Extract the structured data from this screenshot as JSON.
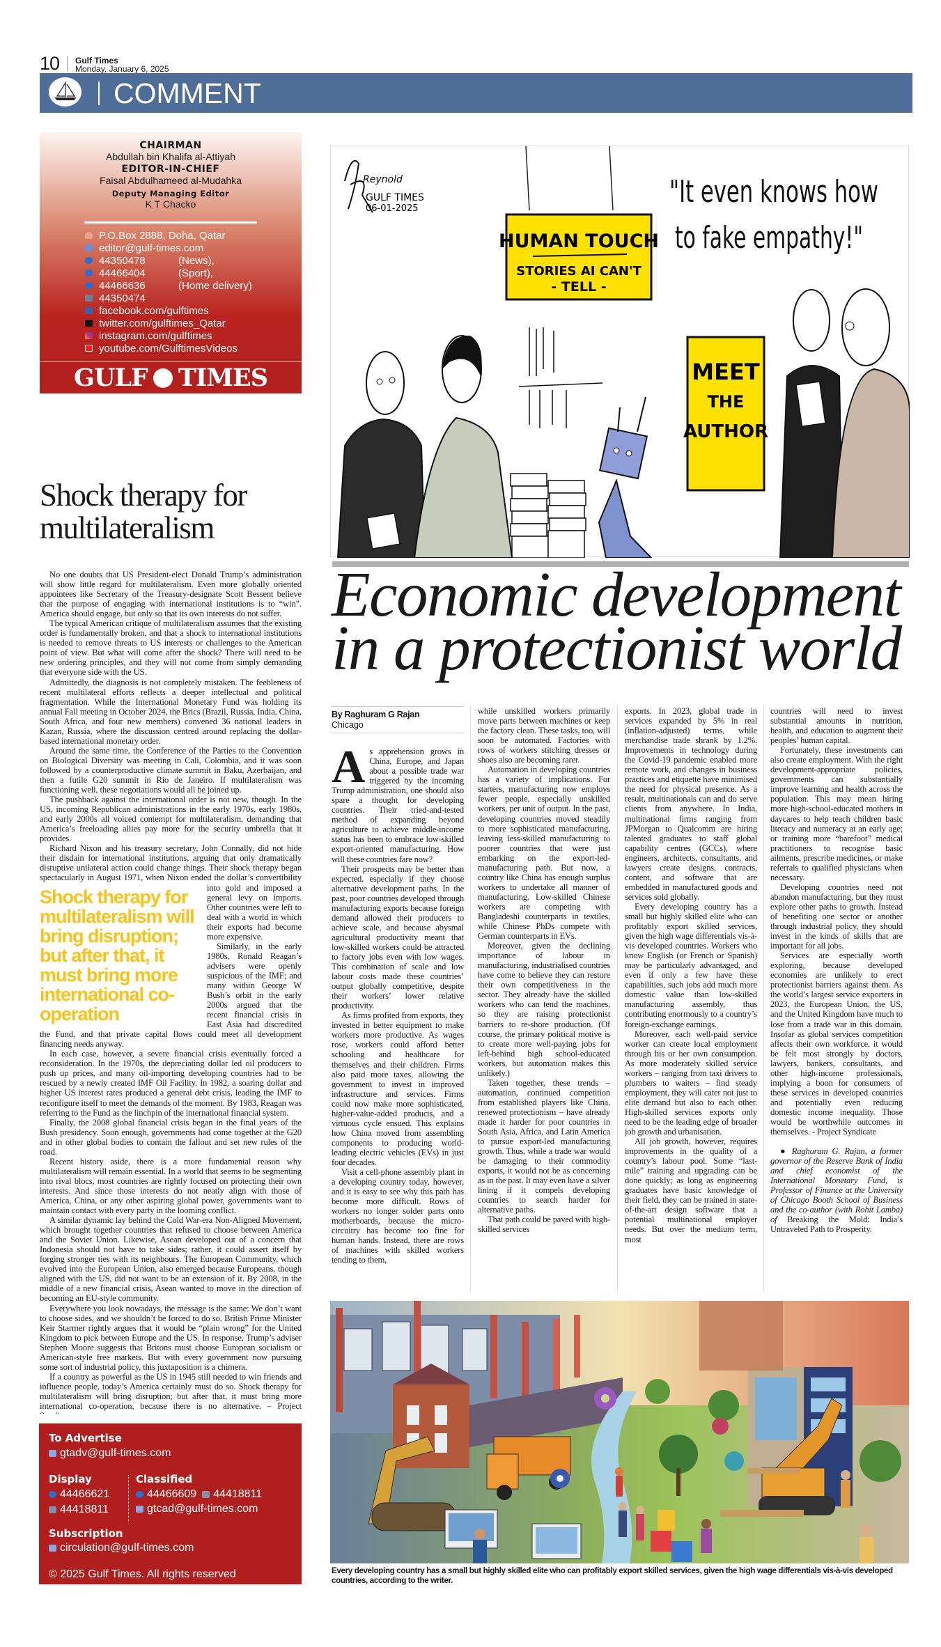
{
  "header": {
    "page_number": "10",
    "paper": "Gulf Times",
    "date": "Monday, January 6, 2025"
  },
  "banner": {
    "section": "COMMENT",
    "logo_icon": "dhow-ship-icon",
    "color": "#4e6d98"
  },
  "masthead": {
    "chairman_label": "CHAIRMAN",
    "chairman_name": "Abdullah bin Khalifa al-Attiyah",
    "editor_label": "EDITOR-IN-CHIEF",
    "editor_name": "Faisal Abdulhameed al-Mudahka",
    "deputy_label": "Deputy Managing Editor",
    "deputy_name": "K T Chacko",
    "contacts": [
      {
        "icon": "location-pin-icon",
        "text": "P.O.Box 2888, Doha, Qatar",
        "note": ""
      },
      {
        "icon": "email-icon",
        "text": "editor@gulf-times.com",
        "note": ""
      },
      {
        "icon": "phone-icon",
        "text": "44350478",
        "note": "(News),"
      },
      {
        "icon": "phone-icon",
        "text": "44466404",
        "note": "(Sport),"
      },
      {
        "icon": "phone-icon",
        "text": "44466636",
        "note": "(Home delivery)"
      },
      {
        "icon": "fax-icon",
        "text": "44350474",
        "note": ""
      },
      {
        "icon": "facebook-icon",
        "text": "facebook.com/gulftimes",
        "note": ""
      },
      {
        "icon": "x-twitter-icon",
        "text": "twitter.com/gulftimes_Qatar",
        "note": ""
      },
      {
        "icon": "instagram-icon",
        "text": "instagram.com/gulftimes",
        "note": ""
      },
      {
        "icon": "youtube-icon",
        "text": "youtube.com/GulftimesVideos",
        "note": ""
      }
    ],
    "logo_text_left": "GULF",
    "logo_text_right": "TIMES",
    "brand_color": "#b3201e"
  },
  "left_article": {
    "headline": "Shock therapy for multilateralism",
    "pullquote": "Shock therapy for multilateralism will bring disruption; but after that, it must bring more international co-operation",
    "pullquote_color": "#f9c31a",
    "paragraphs_before": [
      "No one doubts that US President-elect Donald Trump’s administration will show little regard for multilateralism. Even more globally oriented appointees like Secretary of the Treasury-designate Scott Bessent believe that the purpose of engaging with international institutions is to “win”. America should engage, but only so that its own interests do not suffer.",
      "The typical American critique of multilateralism assumes that the existing order is fundamentally broken, and that a shock to international institutions is needed to remove threats to US interests or challenges to the American point of view. But what will come after the shock? There will need to be new ordering principles, and they will not come from simply demanding that everyone side with the US.",
      "Admittedly, the diagnosis is not completely mistaken. The feebleness of recent multilateral efforts reflects a deeper intellectual and political fragmentation. While the International Monetary Fund was holding its annual Fall meeting in October 2024, the Brics (Brazil, Russia, India, China, South Africa, and four new members) convened 36 national leaders in Kazan, Russia, where the discussion centred around replacing the dollar-based international monetary order.",
      "Around the same time, the Conference of the Parties to the Convention on Biological Diversity was meeting in Cali, Colombia, and it was soon followed by a counterproductive climate summit in Baku, Azerbaijan, and then a futile G20 summit in Rio de Janeiro. If multilateralism was functioning well, these negotiations would all be joined up.",
      "The pushback against the international order is not new, though. In the US, incoming Republican administrations in the early 1970s, early 1980s, and early 2000s all voiced contempt for multilateralism, demanding that America’s freeloading allies pay more for the security umbrella that it provides."
    ],
    "split_paragraph_a": "Richard Nixon and his treasury secretary, John Connally, did not hide their disdain for international institutions, arguing that only dramatically disruptive unilateral action could change things. Their shock therapy began spectacularly in August 1971, when Nixon ended the dollar’s convertibility",
    "split_paragraph_b": "into gold and imposed a general levy on imports. Other countries were left to deal with a world in which their exports had become more expensive.",
    "paragraphs_after": [
      "Similarly, in the early 1980s, Ronald Reagan’s advisers were openly suspicious of the IMF; and many within George W Bush’s orbit in the early 2000s argued that the recent financial crisis in East Asia had discredited the Fund, and that private capital flows could meet all development financing needs anyway.",
      "In each case, however, a severe financial crisis eventually forced a reconsideration. In the 1970s, the depreciating dollar led oil producers to push up prices, and many oil-importing developing countries had to be rescued by a newly created IMF Oil Facility. In 1982, a soaring dollar and higher US interest rates produced a general debt crisis, leading the IMF to reconfigure itself to meet the demands of the moment. By 1983, Reagan was referring to the Fund as the linchpin of the international financial system.",
      "Finally, the 2008 global financial crisis began in the final years of the Bush presidency. Soon enough, governments had come together at the G20 and in other global bodies to contain the fallout and set new rules of the road.",
      "Recent history aside, there is a more fundamental reason why multilateralism will remain essential. In a world that seems to be segmenting into rival blocs, most countries are rightly focused on protecting their own interests. And since those interests do not neatly align with those of America, China, or any other aspiring global power, governments want to maintain contact with every party in the looming conflict.",
      "A similar dynamic lay behind the Cold War-era Non-Aligned Movement, which brought together countries that refused to choose between America and the Soviet Union. Likewise, Asean developed out of a concern that Indonesia should not have to take sides; rather, it could assert itself by forging stronger ties with its neighbours. The European Community, which evolved into the European Union, also emerged because Europeans, though aligned with the US, did not want to be an extension of it. By 2008, in the middle of a new financial crisis, Asean wanted to move in the direction of becoming an EU-style community.",
      "Everywhere you look nowadays, the message is the same: We don’t want to choose sides, and we shouldn’t be forced to do so. British Prime Minister Keir Starmer rightly argues that it would be “plain wrong” for the United Kingdom to pick between Europe and the US. In response, Trump’s adviser Stephen Moore suggests that Britons must choose European socialism or American-style free markets. But with every government now pursuing some sort of industrial policy, this juxtaposition is a chimera.",
      "If a country as powerful as the US in 1945 still needed to win friends and influence people, today’s America certainly must do so. Shock therapy for multilateralism will bring disruption; but after that, it must bring more international co-operation, because there is no alternative. – Project Syndicate"
    ]
  },
  "footer_box": {
    "advertise_label": "To Advertise",
    "advertise_email": "gtadv@gulf-times.com",
    "display_label": "Display",
    "display_phone": "44466621",
    "display_fax": "44418811",
    "classified_label": "Classified",
    "classified_phone": "44466609",
    "classified_fax": "44418811",
    "classified_email": "gtcad@gulf-times.com",
    "subscription_label": "Subscription",
    "subscription_email": "circulation@gulf-times.com",
    "copyright": "© 2025 Gulf Times. All rights reserved"
  },
  "cartoon": {
    "artist_signature": "Reynold",
    "signature_paper": "GULF TIMES",
    "signature_date": "06-01-2025",
    "sign1_line1": "HUMAN TOUCH",
    "sign1_line2": "STORIES AI CAN'T",
    "sign1_line3": "- TELL -",
    "sign2_line1": "MEET",
    "sign2_line2": "THE",
    "sign2_line3": "AUTHOR",
    "quote_line1": "\"It even knows how",
    "quote_line2": "to fake empathy!\"",
    "sign_color": "#ffe100"
  },
  "main_article": {
    "headline_line1": "Economic development",
    "headline_line2": "in a protectionist world",
    "byline": "By Raghuram G Rajan",
    "dateline": "Chicago",
    "drop_cap": "A",
    "col1": [
      "s apprehension grows in China, Europe, and Japan about a possible trade war triggered by the incoming Trump administration, one should also spare a thought for developing countries. Their tried-and-tested method of expanding beyond agriculture to achieve middle-income status has been to embrace low-skilled export-oriented manufacturing. How will these countries fare now?",
      "Their prospects may be better than expected, especially if they choose alternative development paths. In the past, poor countries developed through manufacturing exports because foreign demand allowed their producers to achieve scale, and because abysmal agricultural productivity meant that low-skilled workers could be attracted to factory jobs even with low wages. This combination of scale and low labour costs made these countries’ output globally competitive, despite their workers’ lower relative productivity.",
      "As firms profited from exports, they invested in better equipment to make workers more productive. As wages rose, workers could afford better schooling and healthcare for themselves and their children. Firms also paid more taxes, allowing the government to invest in improved infrastructure and services. Firms could now make more sophisticated, higher-value-added products, and a virtuous cycle ensued. This explains how China moved from assembling components to producing world-leading electric vehicles (EVs) in just four decades.",
      "Visit a cell-phone assembly plant in a developing country today, however, and it is easy to see why this path has become more difficult. Rows of workers no longer solder parts onto motherboards, because the micro-circuitry has become too fine for human hands. Instead, there are rows of machines with skilled workers tending to them,"
    ],
    "col2": [
      "while unskilled workers primarily move parts between machines or keep the factory clean. These tasks, too, will soon be automated. Factories with rows of workers stitching dresses or shoes also are becoming rarer.",
      "Automation in developing countries has a variety of implications. For starters, manufacturing now employs fewer people, especially unskilled workers, per unit of output. In the past, developing countries moved steadily to more sophisticated manufacturing, leaving less-skilled manufacturing to poorer countries that were just embarking on the export-led-manufacturing path. But now, a country like China has enough surplus workers to undertake all manner of manufacturing. Low-skilled Chinese workers are competing with Bangladeshi counterparts in textiles, while Chinese PhDs compete with German counterparts in EVs.",
      "Moreover, given the declining importance of labour in manufacturing, industrialised countries have come to believe they can restore their own competitiveness in the sector. They already have the skilled workers who can tend the machines, so they are raising protectionist barriers to re-shore production. (Of course, the primary political motive is to create more well-paying jobs for left-behind high school-educated workers, but automation makes this unlikely.)",
      "Taken together, these trends – automation, continued competition from established players like China, renewed protectionism – have already made it harder for poor countries in South Asia, Africa, and Latin America to pursue export-led manufacturing growth. Thus, while a trade war would be damaging to their commodity exports, it would not be as concerning as in the past. It may even have a silver lining if it compels developing countries to search harder for alternative paths.",
      "That path could be paved with high-skilled services"
    ],
    "col3": [
      "exports. In 2023, global trade in services expanded by 5% in real (inflation-adjusted) terms, while merchandise trade shrank by 1.2%. Improvements in technology during the Covid-19 pandemic enabled more remote work, and changes in business practices and etiquette have minimised the need for physical presence. As a result, multinationals can and do serve clients from anywhere. In India, multinational firms ranging from JPMorgan to Qualcomm are hiring talented graduates to staff global capability centres (GCCs), where engineers, architects, consultants, and lawyers create designs, contracts, content, and software that are embedded in manufactured goods and services sold globally.",
      "Every developing country has a small but highly skilled elite who can profitably export skilled services, given the high wage differentials vis-à-vis developed countries. Workers who know English (or French or Spanish) may be particularly advantaged, and even if only a few have these capabilities, such jobs add much more domestic value than low-skilled manufacturing assembly, thus contributing enormously to a country’s foreign-exchange earnings.",
      "Moreover, each well-paid service worker can create local employment through his or her own consumption. As more moderately skilled service workers – ranging from taxi drivers to plumbers to waiters – find steady employment, they will cater not just to elite demand but also to each other. High-skilled services exports only need to be the leading edge of broader job growth and urbanisation.",
      "All job growth, however, requires improvements in the quality of a country’s labour pool. Some “last-mile” training and upgrading can be done quickly; as long as engineering graduates have basic knowledge of their field, they can be trained in state-of-the-art design software that a potential multinational employer needs. But over the medium term, most"
    ],
    "col4": [
      "countries will need to invest substantial amounts in nutrition, health, and education to augment their peoples’ human capital.",
      "Fortunately, these investments can also create employment. With the right development-appropriate policies, governments can substantially improve learning and health across the population. This may mean hiring more high-school-educated mothers in daycares to help teach children basic literacy and numeracy at an early age; or training more “barefoot” medical practitioners to recognise basic ailments, prescribe medicines, or make referrals to qualified physicians when necessary.",
      "Developing countries need not abandon manufacturing, but they must explore other paths to growth. Instead of benefiting one sector or another through industrial policy, they should invest in the kinds of skills that are important for all jobs.",
      "Services are especially worth exploring, because developed economies are unlikely to erect protectionist barriers against them. As the world’s largest service exporters in 2023, the European Union, the US, and the United Kingdom have much to lose from a trade war in this domain. Insofar as global services competition affects their own workforce, it would be felt most strongly by doctors, lawyers, bankers, consultants, and other high-income professionals, implying a boon for consumers of these services in developed countries and potentially even reducing domestic income inequality. Those would be worthwhile outcomes in themselves. - Project Syndicate"
    ],
    "bio_italic": "Raghuram G. Rajan, a former governor of the Reserve Bank of India and chief economist of the International Monetary Fund, is Professor of Finance at the University of Chicago Booth School of Business and the co-author (with Rohit Lamba) of",
    "bio_book": "Breaking the Mold: India’s Untraveled Path to Prosperity."
  },
  "illustration": {
    "caption": "Every developing country has a small but highly skilled elite who can profitably export skilled services, given the high wage differentials vis-à-vis developed countries, according to the writer."
  }
}
